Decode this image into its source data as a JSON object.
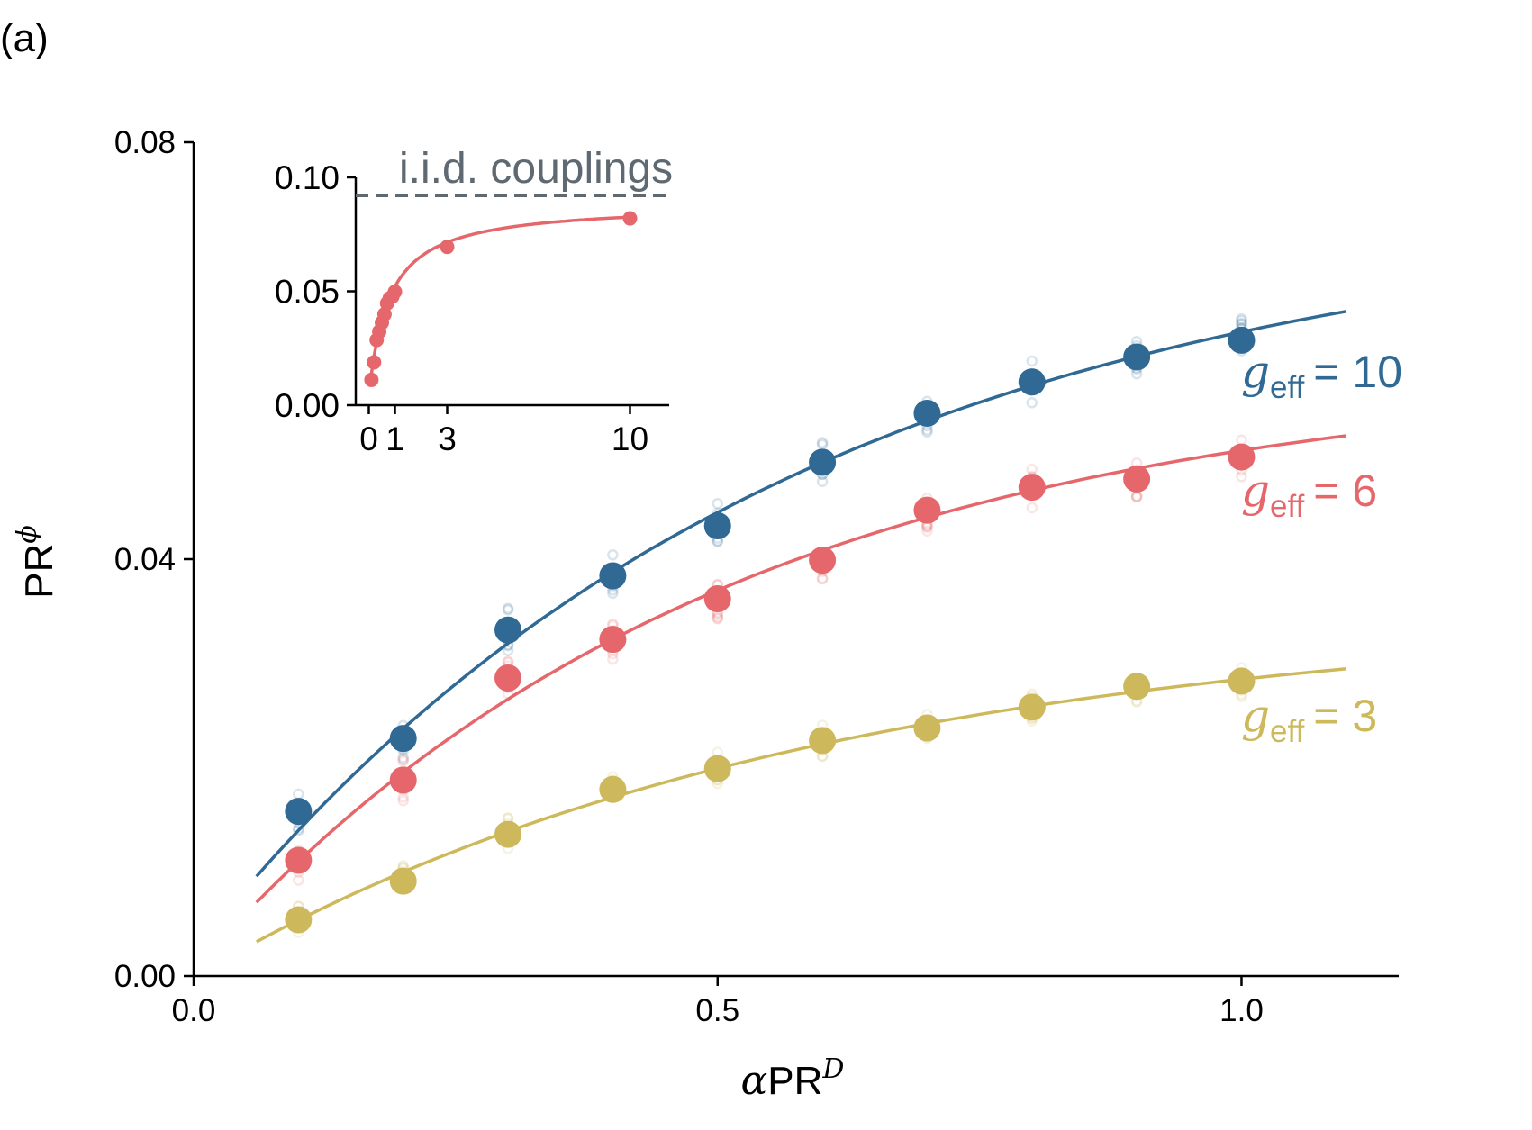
{
  "panel_label": "(a)",
  "colors": {
    "g10": "#2f6994",
    "g6": "#e5676b",
    "g3": "#cdb85c",
    "iid": "#5f6971",
    "axis": "#000000"
  },
  "chart_data": [
    {
      "type": "scatter",
      "role": "main",
      "xlabel": {
        "prefix": "α",
        "base": "PR",
        "sup": "D"
      },
      "ylabel": {
        "base": "PR",
        "sup": "ϕ"
      },
      "xlim": [
        0.0,
        1.15
      ],
      "ylim": [
        0.0,
        0.08
      ],
      "xticks": [
        0.0,
        0.5,
        1.0
      ],
      "xtick_labels": [
        "0.0",
        "0.5",
        "1.0"
      ],
      "yticks": [
        0.0,
        0.04,
        0.08
      ],
      "ytick_labels": [
        "0.00",
        "0.04",
        "0.08"
      ],
      "x": [
        0.1,
        0.2,
        0.3,
        0.4,
        0.5,
        0.6,
        0.7,
        0.8,
        0.9,
        1.0
      ],
      "series": [
        {
          "name": "g_eff = 10",
          "label_symbol": "g",
          "label_sub": "eff",
          "label_value": "= 10",
          "color_key": "g10",
          "values": [
            0.0158,
            0.0228,
            0.0332,
            0.0384,
            0.0432,
            0.0493,
            0.054,
            0.057,
            0.0594,
            0.061
          ],
          "fit": {
            "x_start": 0.06,
            "x_end": 1.1,
            "y_start": 0.0083,
            "y_end": 0.0643
          },
          "trial_spread": 0.0022
        },
        {
          "name": "g_eff = 6",
          "label_symbol": "g",
          "label_sub": "eff",
          "label_value": "= 6",
          "color_key": "g6",
          "values": [
            0.0111,
            0.0188,
            0.0286,
            0.0323,
            0.0362,
            0.0399,
            0.0447,
            0.0469,
            0.0477,
            0.0498
          ],
          "fit": {
            "x_start": 0.06,
            "x_end": 1.1,
            "y_start": 0.0068,
            "y_end": 0.0531
          },
          "trial_spread": 0.002
        },
        {
          "name": "g_eff = 3",
          "label_symbol": "g",
          "label_sub": "eff",
          "label_value": "= 3",
          "color_key": "g3",
          "values": [
            0.0054,
            0.0091,
            0.0136,
            0.0179,
            0.0199,
            0.0226,
            0.0238,
            0.0258,
            0.0278,
            0.0283
          ],
          "fit": {
            "x_start": 0.06,
            "x_end": 1.1,
            "y_start": 0.0037,
            "y_end": 0.0293
          },
          "trial_spread": 0.0016
        }
      ]
    },
    {
      "type": "line",
      "role": "inset",
      "xlim": [
        -0.5,
        11.5
      ],
      "ylim": [
        0.0,
        0.1
      ],
      "xticks": [
        0,
        1,
        3,
        10
      ],
      "xtick_labels": [
        "0",
        "1",
        "3",
        "10"
      ],
      "yticks": [
        0.0,
        0.05,
        0.1
      ],
      "ytick_labels": [
        "0.00",
        "0.05",
        "0.10"
      ],
      "reference_line": {
        "label": "i.i.d. couplings",
        "y": 0.092
      },
      "series": [
        {
          "name": "g_eff = 6",
          "color_key": "g6",
          "x": [
            0.1,
            0.2,
            0.3,
            0.4,
            0.5,
            0.6,
            0.7,
            0.8,
            0.9,
            1.0,
            3.0,
            10.0
          ],
          "values": [
            0.0111,
            0.0188,
            0.0286,
            0.0323,
            0.0362,
            0.0399,
            0.0447,
            0.0469,
            0.0477,
            0.0498,
            0.0695,
            0.082
          ]
        }
      ]
    }
  ]
}
